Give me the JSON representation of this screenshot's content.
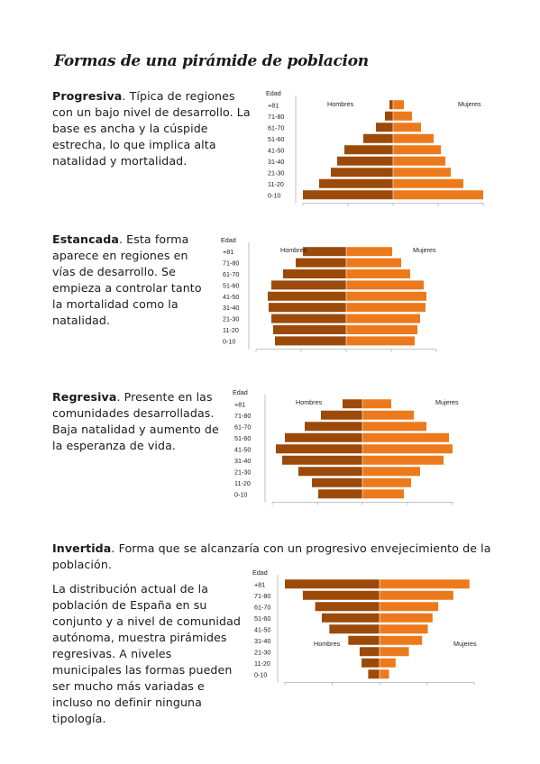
{
  "page_title": "Formas de una pirámide de poblacion",
  "sections": {
    "progresiva": {
      "heading": "Progresiva",
      "text": ". Típica de regiones con un bajo nivel de desarrollo. La base es ancha y la cúspide estrecha, lo que implica alta natalidad y mortalidad."
    },
    "estancada": {
      "heading": "Estancada",
      "text": ". Esta forma aparece en regiones en vías de desarrollo. Se empieza a controlar tanto la mortalidad como la natalidad."
    },
    "regresiva": {
      "heading": "Regresiva",
      "text": ". Presente en las comunidades desarrolladas. Baja natalidad y aumento de la esperanza de vida."
    },
    "invertida": {
      "heading": "Invertida",
      "text": ". Forma que se alcanzaría con un progresivo envejecimiento de la población."
    }
  },
  "closing_paragraph": "La distribución actual de la población de España en su conjunto y a nivel de comunidad autónoma, muestra pirámides regresivas. A niveles municipales las formas pueden ser mucho más variadas e incluso no definir ninguna tipología.",
  "colors": {
    "hombres": "#9c4a0a",
    "mujeres": "#ec7a1c",
    "axis": "#b0b0b0"
  },
  "chart_data": [
    {
      "type": "bar",
      "name": "progresiva",
      "axis_title": [
        "Edad",
        "+81"
      ],
      "categories": [
        "0-10",
        "11-20",
        "21-30",
        "31-40",
        "41-50",
        "51-60",
        "61-70",
        "71-80",
        "+81"
      ],
      "series": [
        {
          "name": "Hombres",
          "values": [
            10,
            8.2,
            6.9,
            6.2,
            5.4,
            3.3,
            1.9,
            0.9,
            0.4
          ]
        },
        {
          "name": "Mujeres",
          "values": [
            10,
            7.8,
            6.4,
            5.8,
            5.3,
            4.5,
            3.1,
            2.1,
            1.2
          ]
        }
      ]
    },
    {
      "type": "bar",
      "name": "estancada",
      "axis_title": [
        "Edad",
        "+81"
      ],
      "categories": [
        "0-10",
        "11-20",
        "21-30",
        "31-40",
        "41-50",
        "51-60",
        "61-70",
        "71-80",
        "+81"
      ],
      "series": [
        {
          "name": "Hombres",
          "values": [
            7.9,
            8.1,
            8.3,
            8.6,
            8.7,
            8.3,
            7.0,
            5.6,
            4.8
          ]
        },
        {
          "name": "Mujeres",
          "values": [
            7.6,
            7.9,
            8.2,
            8.8,
            8.9,
            8.6,
            7.1,
            6.1,
            5.1
          ]
        }
      ]
    },
    {
      "type": "bar",
      "name": "regresiva",
      "axis_title": [
        "Edad",
        "+81"
      ],
      "categories": [
        "0-10",
        "11-20",
        "21-30",
        "31-40",
        "41-50",
        "51-60",
        "61-70",
        "71-80",
        "+81"
      ],
      "series": [
        {
          "name": "Hombres",
          "values": [
            4.9,
            5.6,
            7.1,
            8.9,
            9.6,
            8.6,
            6.4,
            4.6,
            2.2
          ]
        },
        {
          "name": "Mujeres",
          "values": [
            4.6,
            5.4,
            6.4,
            9.0,
            10.0,
            9.6,
            7.1,
            5.7,
            3.2
          ]
        }
      ]
    },
    {
      "type": "bar",
      "name": "invertida",
      "axis_title": [
        "Edad",
        "+81"
      ],
      "categories": [
        "0-10",
        "11-20",
        "21-30",
        "31-40",
        "41-50",
        "51-60",
        "61-70",
        "71-80",
        "+81"
      ],
      "series": [
        {
          "name": "Hombres",
          "values": [
            1.2,
            1.9,
            2.1,
            3.3,
            5.3,
            6.1,
            6.8,
            8.1,
            10.0
          ]
        },
        {
          "name": "Mujeres",
          "values": [
            1.0,
            1.7,
            3.1,
            4.5,
            5.1,
            5.6,
            6.2,
            7.8,
            9.5
          ]
        }
      ]
    }
  ]
}
